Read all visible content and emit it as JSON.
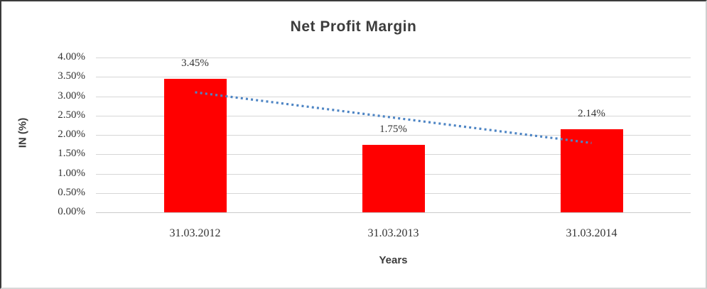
{
  "chart": {
    "title": "Net Profit Margin",
    "y_axis_title": "IN (%)",
    "x_axis_title": "Years"
  },
  "chart_data": {
    "type": "bar",
    "title": "Net Profit Margin",
    "categories": [
      "31.03.2012",
      "31.03.2013",
      "31.03.2014"
    ],
    "values": [
      3.45,
      1.75,
      2.14
    ],
    "data_labels": [
      "3.45%",
      "1.75%",
      "2.14%"
    ],
    "xlabel": "Years",
    "ylabel": "IN (%)",
    "ylim": [
      0,
      4
    ],
    "ytick_step": 0.5,
    "ytick_labels": [
      "0.00%",
      "0.50%",
      "1.00%",
      "1.50%",
      "2.00%",
      "2.50%",
      "3.00%",
      "3.50%",
      "4.00%"
    ],
    "grid": true,
    "legend": "none",
    "bar_color": "#ff0000",
    "gridline_color": "#d6d6d6",
    "trendline": {
      "type": "linear",
      "style": "dotted",
      "color": "#4e85c4"
    }
  }
}
